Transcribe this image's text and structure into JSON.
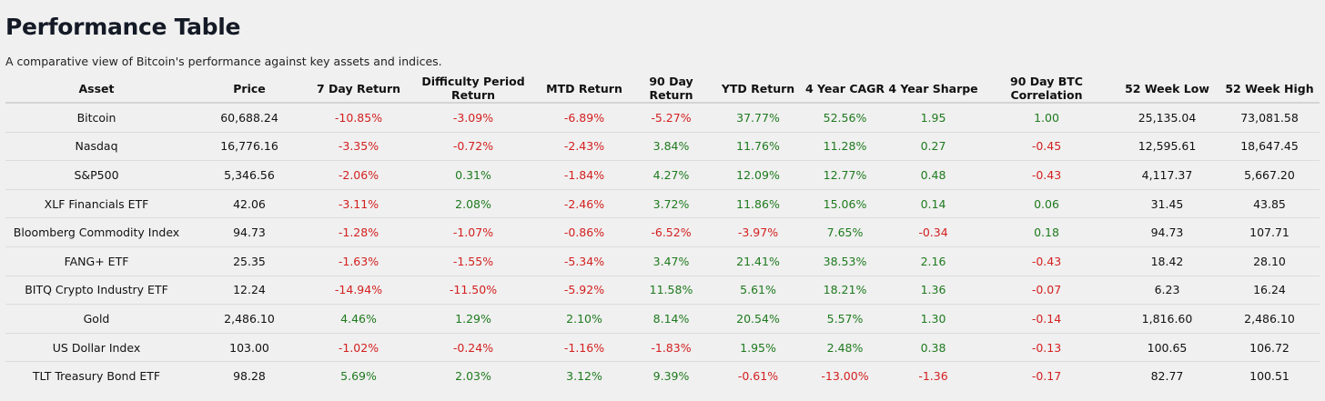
{
  "header": {
    "title": "Performance Table",
    "subtitle": "A comparative view of Bitcoin's performance against key assets and indices."
  },
  "table": {
    "columns": [
      "Asset",
      "Price",
      "7 Day Return",
      "Difficulty Period Return",
      "MTD Return",
      "90 Day Return",
      "YTD Return",
      "4 Year CAGR",
      "4 Year Sharpe",
      "90 Day BTC Correlation",
      "52 Week Low",
      "52 Week High"
    ],
    "rows": [
      [
        "Bitcoin",
        "60,688.24",
        "-10.85%",
        "-3.09%",
        "-6.89%",
        "-5.27%",
        "37.77%",
        "52.56%",
        "1.95",
        "1.00",
        "25,135.04",
        "73,081.58"
      ],
      [
        "Nasdaq",
        "16,776.16",
        "-3.35%",
        "-0.72%",
        "-2.43%",
        "3.84%",
        "11.76%",
        "11.28%",
        "0.27",
        "-0.45",
        "12,595.61",
        "18,647.45"
      ],
      [
        "S&P500",
        "5,346.56",
        "-2.06%",
        "0.31%",
        "-1.84%",
        "4.27%",
        "12.09%",
        "12.77%",
        "0.48",
        "-0.43",
        "4,117.37",
        "5,667.20"
      ],
      [
        "XLF Financials ETF",
        "42.06",
        "-3.11%",
        "2.08%",
        "-2.46%",
        "3.72%",
        "11.86%",
        "15.06%",
        "0.14",
        "0.06",
        "31.45",
        "43.85"
      ],
      [
        "Bloomberg Commodity Index",
        "94.73",
        "-1.28%",
        "-1.07%",
        "-0.86%",
        "-6.52%",
        "-3.97%",
        "7.65%",
        "-0.34",
        "0.18",
        "94.73",
        "107.71"
      ],
      [
        "FANG+ ETF",
        "25.35",
        "-1.63%",
        "-1.55%",
        "-5.34%",
        "3.47%",
        "21.41%",
        "38.53%",
        "2.16",
        "-0.43",
        "18.42",
        "28.10"
      ],
      [
        "BITQ Crypto Industry ETF",
        "12.24",
        "-14.94%",
        "-11.50%",
        "-5.92%",
        "11.58%",
        "5.61%",
        "18.21%",
        "1.36",
        "-0.07",
        "6.23",
        "16.24"
      ],
      [
        "Gold",
        "2,486.10",
        "4.46%",
        "1.29%",
        "2.10%",
        "8.14%",
        "20.54%",
        "5.57%",
        "1.30",
        "-0.14",
        "1,816.60",
        "2,486.10"
      ],
      [
        "US Dollar Index",
        "103.00",
        "-1.02%",
        "-0.24%",
        "-1.16%",
        "-1.83%",
        "1.95%",
        "2.48%",
        "0.38",
        "-0.13",
        "100.65",
        "106.72"
      ],
      [
        "TLT Treasury Bond ETF",
        "98.28",
        "5.69%",
        "2.03%",
        "3.12%",
        "9.39%",
        "-0.61%",
        "-13.00%",
        "-1.36",
        "-0.17",
        "82.77",
        "100.51"
      ]
    ]
  }
}
